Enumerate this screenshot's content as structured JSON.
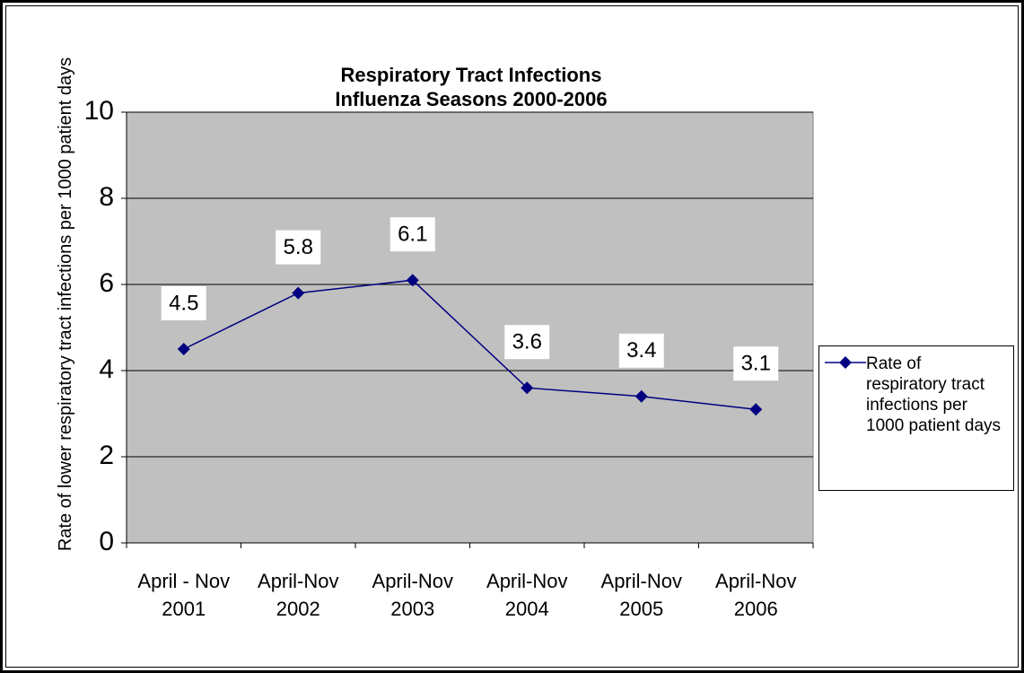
{
  "chart_data": {
    "type": "line",
    "title": "Respiratory Tract Infections",
    "subtitle": "Influenza Seasons 2000-2006",
    "y_label": "Rate of lower respiratory tract infections per 1000 patient days",
    "categories": [
      "April - Nov 2001",
      "April-Nov 2002",
      "April-Nov 2003",
      "April-Nov 2004",
      "April-Nov 2005",
      "April-Nov 2006"
    ],
    "series": [
      {
        "name": "Rate of respiratory tract infections per 1000 patient days",
        "color": "#000080",
        "values": [
          4.5,
          5.8,
          6.1,
          3.6,
          3.4,
          3.1
        ]
      }
    ],
    "ylim": [
      0,
      10
    ],
    "yticks": [
      0,
      2,
      4,
      6,
      8,
      10
    ],
    "grid": true,
    "legend": "right"
  }
}
